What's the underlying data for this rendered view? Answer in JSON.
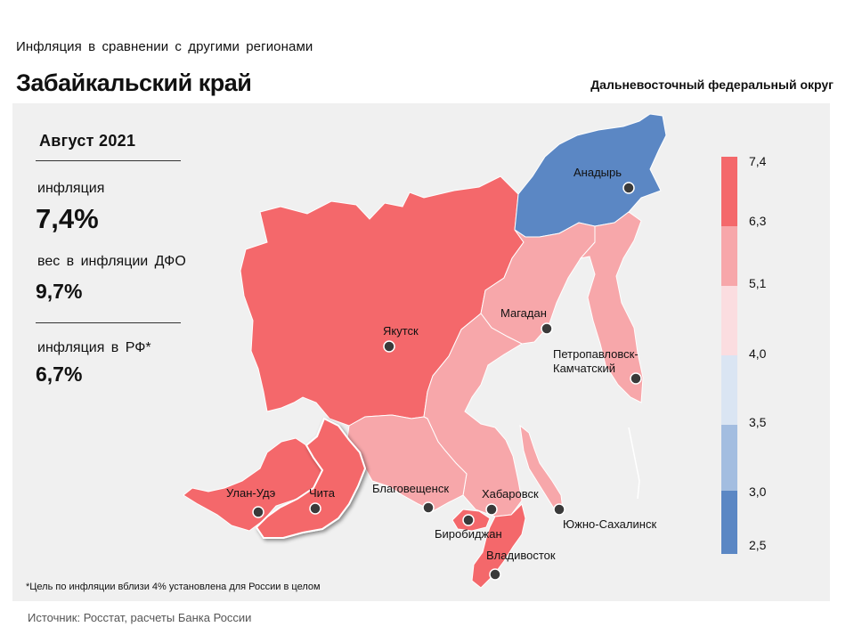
{
  "header": {
    "subtitle": "Инфляция  в сравнении  с другими  регионами",
    "title": "Забайкальский край",
    "district": "Дальневосточный федеральный округ"
  },
  "stats": {
    "period": "Август 2021",
    "inflation_label": "инфляция",
    "inflation_value": "7,4%",
    "weight_label": "вес в инфляции  ДФО",
    "weight_value": "9,7%",
    "rf_label": "инфляция  в РФ*",
    "rf_value": "6,7%"
  },
  "map": {
    "cities": {
      "anadyr": "Анадырь",
      "magadan": "Магадан",
      "petropavlovsk_1": "Петропавловск-",
      "petropavlovsk_2": "Камчатский",
      "yakutsk": "Якутск",
      "ulan_ude": "Улан-Удэ",
      "chita": "Чита",
      "blagoveshchensk": "Благовещенск",
      "khabarovsk": "Хабаровск",
      "birobidzhan": "Биробиджан",
      "yuzhno": "Южно-Сахалинск",
      "vladivostok": "Владивосток"
    },
    "colors": {
      "high": "#f4686b",
      "mid": "#f7a7aa",
      "low": "#5b87c4",
      "panel": "#f0f0f0"
    }
  },
  "legend": {
    "labels": [
      "7,4",
      "6,3",
      "5,1",
      "4,0",
      "3,5",
      "3,0",
      "2,5"
    ],
    "colors": [
      "#f4686b",
      "#f7a7aa",
      "#fbdde0",
      "#dae5f3",
      "#a3bde0",
      "#5b87c4"
    ]
  },
  "footnote": "*Цель по инфляции вблизи 4% установлена для России в целом",
  "source": "Источник: Росстат, расчеты Банка России"
}
